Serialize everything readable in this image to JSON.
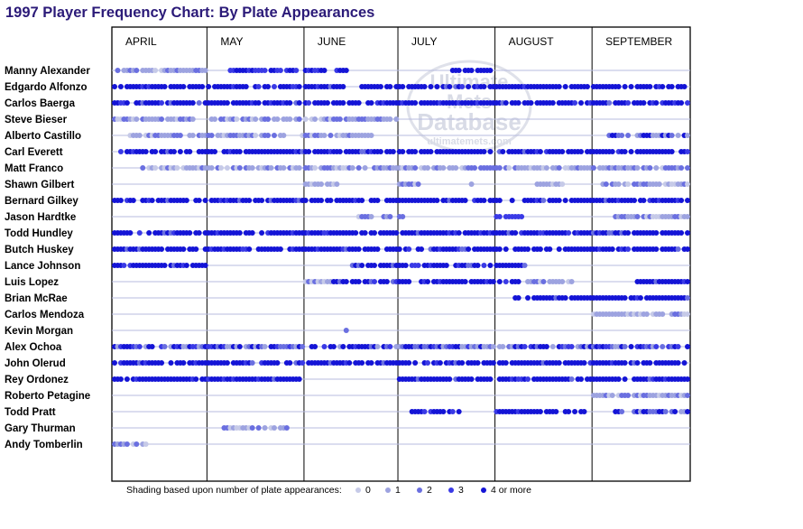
{
  "chart_data": {
    "type": "scatter",
    "title": "1997 Player Frequency Chart: By Plate Appearances",
    "months": [
      {
        "name": "APRIL",
        "start_day": 1,
        "end_day": 30
      },
      {
        "name": "MAY",
        "start_day": 31,
        "end_day": 61
      },
      {
        "name": "JUNE",
        "start_day": 62,
        "end_day": 91
      },
      {
        "name": "JULY",
        "start_day": 92,
        "end_day": 122
      },
      {
        "name": "AUGUST",
        "start_day": 123,
        "end_day": 153
      },
      {
        "name": "SEPTEMBER",
        "start_day": 154,
        "end_day": 184
      }
    ],
    "x_domain": [
      1,
      184
    ],
    "shade_colors": [
      "#c6cae8",
      "#9da3e0",
      "#6a6fe0",
      "#3a3ae6",
      "#1414d6"
    ],
    "legend": {
      "caption": "Shading based upon number of plate appearances:",
      "items": [
        {
          "label": "0",
          "level": 0
        },
        {
          "label": "1",
          "level": 1
        },
        {
          "label": "2",
          "level": 2
        },
        {
          "label": "3",
          "level": 3
        },
        {
          "label": "4 or more",
          "level": 4
        }
      ]
    },
    "players": [
      {
        "name": "Manny Alexander",
        "segments": [
          [
            2,
            30,
            "12"
          ],
          [
            36,
            59,
            "34"
          ],
          [
            62,
            75,
            "34"
          ],
          [
            108,
            121,
            "4"
          ]
        ]
      },
      {
        "name": "Edgardo Alfonzo",
        "segments": [
          [
            1,
            74,
            "4"
          ],
          [
            80,
            184,
            "4"
          ]
        ]
      },
      {
        "name": "Carlos Baerga",
        "segments": [
          [
            1,
            184,
            "4"
          ]
        ]
      },
      {
        "name": "Steve Bieser",
        "segments": [
          [
            1,
            26,
            "12"
          ],
          [
            31,
            60,
            "12"
          ],
          [
            62,
            91,
            "12"
          ]
        ]
      },
      {
        "name": "Alberto Castillo",
        "segments": [
          [
            6,
            36,
            "12"
          ],
          [
            37,
            55,
            "12"
          ],
          [
            61,
            83,
            "12"
          ],
          [
            158,
            184,
            "24"
          ]
        ]
      },
      {
        "name": "Carl Everett",
        "segments": [
          [
            1,
            184,
            "4"
          ]
        ]
      },
      {
        "name": "Matt Franco",
        "segments": [
          [
            10,
            184,
            "12"
          ]
        ]
      },
      {
        "name": "Shawn Gilbert",
        "segments": [
          [
            62,
            72,
            "1"
          ],
          [
            92,
            98,
            "12"
          ],
          [
            115,
            115,
            "1"
          ],
          [
            136,
            144,
            "1"
          ],
          [
            157,
            184,
            "12"
          ]
        ]
      },
      {
        "name": "Bernard Gilkey",
        "segments": [
          [
            1,
            24,
            "4"
          ],
          [
            27,
            85,
            "4"
          ],
          [
            88,
            124,
            "4"
          ],
          [
            127,
            184,
            "4"
          ]
        ]
      },
      {
        "name": "Jason Hardtke",
        "segments": [
          [
            79,
            84,
            "12"
          ],
          [
            87,
            93,
            "12"
          ],
          [
            123,
            131,
            "3"
          ],
          [
            161,
            184,
            "12"
          ]
        ]
      },
      {
        "name": "Todd Hundley",
        "segments": [
          [
            1,
            184,
            "4"
          ]
        ]
      },
      {
        "name": "Butch Huskey",
        "segments": [
          [
            1,
            184,
            "4"
          ]
        ]
      },
      {
        "name": "Lance Johnson",
        "segments": [
          [
            1,
            30,
            "4"
          ],
          [
            77,
            132,
            "4"
          ]
        ]
      },
      {
        "name": "Luis Lopez",
        "segments": [
          [
            62,
            70,
            "12"
          ],
          [
            71,
            130,
            "4"
          ],
          [
            133,
            148,
            "12"
          ],
          [
            167,
            184,
            "4"
          ]
        ]
      },
      {
        "name": "Brian McRae",
        "segments": [
          [
            129,
            184,
            "4"
          ]
        ]
      },
      {
        "name": "Carlos Mendoza",
        "segments": [
          [
            154,
            176,
            "1"
          ],
          [
            179,
            184,
            "12"
          ]
        ]
      },
      {
        "name": "Kevin Morgan",
        "segments": [
          [
            75,
            75,
            "2"
          ]
        ]
      },
      {
        "name": "Alex Ochoa",
        "segments": [
          [
            1,
            184,
            "mix"
          ]
        ]
      },
      {
        "name": "John Olerud",
        "segments": [
          [
            1,
            184,
            "4"
          ]
        ]
      },
      {
        "name": "Rey Ordonez",
        "segments": [
          [
            1,
            61,
            "4"
          ],
          [
            92,
            184,
            "4"
          ]
        ]
      },
      {
        "name": "Roberto Petagine",
        "segments": [
          [
            154,
            184,
            "12"
          ]
        ]
      },
      {
        "name": "Todd Pratt",
        "segments": [
          [
            96,
            111,
            "4"
          ],
          [
            123,
            143,
            "4"
          ],
          [
            145,
            151,
            "4"
          ],
          [
            161,
            184,
            "24"
          ]
        ]
      },
      {
        "name": "Gary Thurman",
        "segments": [
          [
            36,
            57,
            "12"
          ]
        ]
      },
      {
        "name": "Andy Tomberlin",
        "segments": [
          [
            1,
            11,
            "12"
          ]
        ]
      }
    ],
    "watermark": {
      "line1": "Ultimate",
      "line2": "Mets",
      "line3": "Database",
      "url": "ultimatemets.com"
    }
  }
}
